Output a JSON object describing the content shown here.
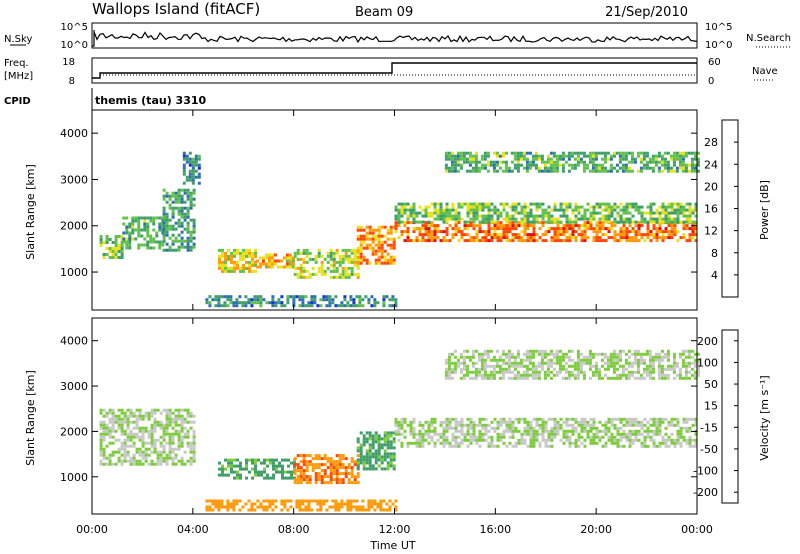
{
  "header": {
    "site": "Wallops Island (fitACF)",
    "beam": "Beam 09",
    "date": "21/Sep/2010"
  },
  "status_panels": {
    "nsky_label": "N.Sky",
    "nsky_ticks": [
      "10^5",
      "10^0"
    ],
    "nsearch_label": "N.Search",
    "nsearch_ticks": [
      "10^5",
      "10^0"
    ],
    "freq_label": "Freq.",
    "freq_unit": "[MHz]",
    "freq_ticks": [
      "18",
      "8"
    ],
    "nave_label": "Nave",
    "nave_ticks": [
      "60",
      "0"
    ],
    "cpid_label": "CPID",
    "cpid_value": "themis (tau) 3310"
  },
  "chart_data": [
    {
      "type": "heatmap",
      "title": "",
      "parameter": "Power",
      "xlabel": "Time UT",
      "ylabel": "Slant Range [km]",
      "x_ticks": [
        "00:00",
        "04:00",
        "08:00",
        "12:00",
        "16:00",
        "20:00",
        "00:00"
      ],
      "x_range_hours": [
        0,
        24
      ],
      "y_ticks": [
        1000,
        2000,
        3000,
        4000
      ],
      "ylim": [
        180,
        4500
      ],
      "colorbar": {
        "label": "Power [dB]",
        "ticks": [
          4,
          8,
          12,
          16,
          20,
          24,
          28
        ],
        "range": [
          0,
          32
        ],
        "colors": [
          "#1034d8",
          "#2f6fb0",
          "#3f9e6a",
          "#62c04c",
          "#e8e21e",
          "#ff9a0a",
          "#ff4808",
          "#e01010"
        ]
      },
      "regions": [
        {
          "t": [
            0.3,
            1.2
          ],
          "range": [
            1300,
            1800
          ],
          "value": 14
        },
        {
          "t": [
            1.2,
            2.8
          ],
          "range": [
            1500,
            2200
          ],
          "value": 12
        },
        {
          "t": [
            2.8,
            4.0
          ],
          "range": [
            1500,
            2800
          ],
          "value": 10
        },
        {
          "t": [
            3.6,
            4.2
          ],
          "range": [
            2900,
            3600
          ],
          "value": 8
        },
        {
          "t": [
            5.0,
            6.5
          ],
          "range": [
            1000,
            1500
          ],
          "value": 18
        },
        {
          "t": [
            6.5,
            8.0
          ],
          "range": [
            1100,
            1400
          ],
          "value": 20
        },
        {
          "t": [
            8.0,
            10.5
          ],
          "range": [
            900,
            1500
          ],
          "value": 16
        },
        {
          "t": [
            10.5,
            12.0
          ],
          "range": [
            1200,
            2000
          ],
          "value": 22
        },
        {
          "t": [
            12.0,
            24.0
          ],
          "range": [
            1700,
            2100
          ],
          "value": 24
        },
        {
          "t": [
            12.0,
            24.0
          ],
          "range": [
            2100,
            2500
          ],
          "value": 14
        },
        {
          "t": [
            14.0,
            24.0
          ],
          "range": [
            3200,
            3600
          ],
          "value": 12
        },
        {
          "t": [
            4.5,
            12.0
          ],
          "range": [
            300,
            500
          ],
          "value": 8
        }
      ]
    },
    {
      "type": "heatmap",
      "title": "",
      "parameter": "Velocity",
      "xlabel": "Time UT",
      "ylabel": "Slant Range [km]",
      "x_ticks": [
        "00:00",
        "04:00",
        "08:00",
        "12:00",
        "16:00",
        "20:00",
        "00:00"
      ],
      "x_range_hours": [
        0,
        24
      ],
      "y_ticks": [
        1000,
        2000,
        3000,
        4000
      ],
      "ylim": [
        180,
        4500
      ],
      "colorbar": {
        "label": "Velocity [m s⁻¹]",
        "ticks": [
          200,
          100,
          50,
          15,
          -15,
          -50,
          -100,
          -200
        ],
        "colors": [
          "#1a34c8",
          "#2f6fb0",
          "#3f9e6a",
          "#7ccc3c",
          "#c8c8c8",
          "#ff9a0a",
          "#ff4808",
          "#e01010"
        ]
      },
      "regions": [
        {
          "t": [
            0.3,
            4.0
          ],
          "range": [
            1300,
            2500
          ],
          "value": 0
        },
        {
          "t": [
            5.0,
            8.0
          ],
          "range": [
            1000,
            1400
          ],
          "value": 40
        },
        {
          "t": [
            8.0,
            10.5
          ],
          "range": [
            900,
            1500
          ],
          "value": -70
        },
        {
          "t": [
            10.5,
            12.0
          ],
          "range": [
            1200,
            2000
          ],
          "value": 40
        },
        {
          "t": [
            12.0,
            24.0
          ],
          "range": [
            1700,
            2300
          ],
          "value": 0
        },
        {
          "t": [
            14.0,
            24.0
          ],
          "range": [
            3200,
            3800
          ],
          "value": 0
        },
        {
          "t": [
            4.5,
            12.0
          ],
          "range": [
            300,
            500
          ],
          "value": -60
        }
      ]
    }
  ]
}
